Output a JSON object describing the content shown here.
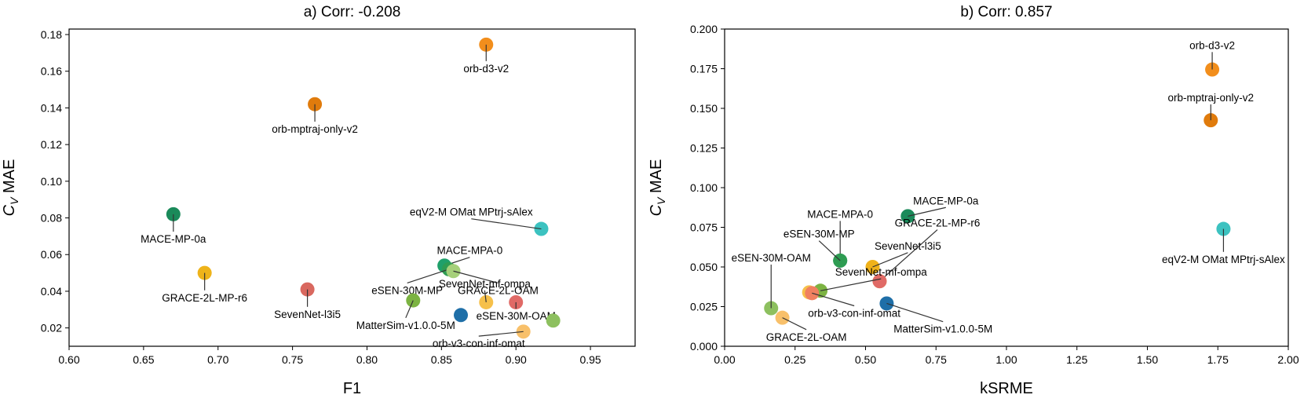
{
  "chart_data": [
    {
      "type": "scatter",
      "title": "a) Corr: -0.208",
      "xlabel": "F1",
      "ylabel_main": "C",
      "ylabel_sub": "V",
      "ylabel_rest": " MAE",
      "xlim": [
        0.6,
        0.98
      ],
      "ylim": [
        0.01,
        0.183
      ],
      "xticks": [
        0.6,
        0.65,
        0.7,
        0.75,
        0.8,
        0.85,
        0.9,
        0.95
      ],
      "xtick_labels": [
        "0.60",
        "0.65",
        "0.70",
        "0.75",
        "0.80",
        "0.85",
        "0.90",
        "0.95"
      ],
      "yticks": [
        0.02,
        0.04,
        0.06,
        0.08,
        0.1,
        0.12,
        0.14,
        0.16,
        0.18
      ],
      "ytick_labels": [
        "0.02",
        "0.04",
        "0.06",
        "0.08",
        "0.10",
        "0.12",
        "0.14",
        "0.16",
        "0.18"
      ],
      "points": [
        {
          "label": "orb-d3-v2",
          "x": 0.88,
          "y": 0.1745,
          "color": "#f28e1c",
          "lx": 0.88,
          "ly": 0.1655
        },
        {
          "label": "orb-mptraj-only-v2",
          "x": 0.765,
          "y": 0.142,
          "color": "#e07b0c",
          "lx": 0.765,
          "ly": 0.1325
        },
        {
          "label": "MACE-MP-0a",
          "x": 0.67,
          "y": 0.082,
          "color": "#1a8a5a",
          "lx": 0.67,
          "ly": 0.0725
        },
        {
          "label": "eqV2-M OMat MPtrj-sAlex",
          "x": 0.917,
          "y": 0.074,
          "color": "#3cc2c0",
          "lx": 0.87,
          "ly": 0.0795
        },
        {
          "label": "GRACE-2L-MP-r6",
          "x": 0.691,
          "y": 0.05,
          "color": "#eeb31a",
          "lx": 0.691,
          "ly": 0.0405
        },
        {
          "label": "MACE-MPA-0",
          "x": 0.852,
          "y": 0.054,
          "color": "#1fa06a",
          "lx": 0.869,
          "ly": 0.0585
        },
        {
          "label": "eSEN-30M-MP",
          "x": 0.855,
          "y": 0.052,
          "color": "#2e9c52",
          "lx": 0.827,
          "ly": 0.0445
        },
        {
          "label": "GRACE-2L-OAM",
          "x": 0.858,
          "y": 0.051,
          "color": "#a6d07a",
          "lx": 0.888,
          "ly": 0.0445
        },
        {
          "label": "SevenNet-l3i5",
          "x": 0.76,
          "y": 0.041,
          "color": "#d9685f",
          "lx": 0.76,
          "ly": 0.0315
        },
        {
          "label": "SevenNet-mf-ompa",
          "x": 0.88,
          "y": 0.034,
          "color": "#f6c04a",
          "lx": 0.879,
          "ly": 0.0405
        },
        {
          "label": "MatterSim-v1.0.0-5M",
          "x": 0.831,
          "y": 0.035,
          "color": "#7cb342",
          "lx": 0.826,
          "ly": 0.0255
        },
        {
          "label": "eSEN-30M-OAM",
          "x": 0.9,
          "y": 0.034,
          "color": "#e06a66",
          "lx": 0.9,
          "ly": 0.0305
        },
        {
          "label": "",
          "x": 0.863,
          "y": 0.027,
          "color": "#1f6fa8",
          "lx": 0.863,
          "ly": 0.027
        },
        {
          "label": "",
          "x": 0.925,
          "y": 0.024,
          "color": "#8dc05f",
          "lx": 0.925,
          "ly": 0.024
        },
        {
          "label": "orb-v3-con-inf-omat",
          "x": 0.905,
          "y": 0.018,
          "color": "#f8c06a",
          "lx": 0.875,
          "ly": 0.0155
        }
      ]
    },
    {
      "type": "scatter",
      "title": "b) Corr: 0.857",
      "xlabel": "kSRME",
      "ylabel_main": "C",
      "ylabel_sub": "V",
      "ylabel_rest": " MAE",
      "xlim": [
        0.0,
        2.0
      ],
      "ylim": [
        0.0,
        0.2
      ],
      "xticks": [
        0.0,
        0.25,
        0.5,
        0.75,
        1.0,
        1.25,
        1.5,
        1.75,
        2.0
      ],
      "xtick_labels": [
        "0.00",
        "0.25",
        "0.50",
        "0.75",
        "1.00",
        "1.25",
        "1.50",
        "1.75",
        "2.00"
      ],
      "yticks": [
        0.0,
        0.025,
        0.05,
        0.075,
        0.1,
        0.125,
        0.15,
        0.175,
        0.2
      ],
      "ytick_labels": [
        "0.000",
        "0.025",
        "0.050",
        "0.075",
        "0.100",
        "0.125",
        "0.150",
        "0.175",
        "0.200"
      ],
      "points": [
        {
          "label": "orb-d3-v2",
          "x": 1.73,
          "y": 0.1745,
          "color": "#f28e1c",
          "lx": 1.73,
          "ly": 0.1855
        },
        {
          "label": "orb-mptraj-only-v2",
          "x": 1.725,
          "y": 0.1425,
          "color": "#e07b0c",
          "lx": 1.725,
          "ly": 0.1525
        },
        {
          "label": "eqV2-M OMat MPtrj-sAlex",
          "x": 1.77,
          "y": 0.074,
          "color": "#3cc2c0",
          "lx": 1.77,
          "ly": 0.0595
        },
        {
          "label": "MACE-MP-0a",
          "x": 0.65,
          "y": 0.082,
          "color": "#1a8a5a",
          "lx": 0.785,
          "ly": 0.0875
        },
        {
          "label": "GRACE-2L-MP-r6",
          "x": 0.55,
          "y": 0.041,
          "color": "#eeb31a",
          "lx": 0.755,
          "ly": 0.0735
        },
        {
          "label": "MACE-MPA-0",
          "x": 0.41,
          "y": 0.054,
          "color": "#1fa06a",
          "lx": 0.41,
          "ly": 0.079
        },
        {
          "label": "eSEN-30M-MP",
          "x": 0.41,
          "y": 0.054,
          "color": "#2e9c52",
          "lx": 0.335,
          "ly": 0.0665
        },
        {
          "label": "SevenNet-l3i5",
          "x": 0.525,
          "y": 0.05,
          "color": "#f0b21a",
          "lx": 0.65,
          "ly": 0.059
        },
        {
          "label": "",
          "x": 0.55,
          "y": 0.041,
          "color": "#e06a66",
          "lx": 0.55,
          "ly": 0.041
        },
        {
          "label": "SevenNet-mf-ompa",
          "x": 0.34,
          "y": 0.035,
          "color": "#7cb342",
          "lx": 0.555,
          "ly": 0.0425
        },
        {
          "label": "eSEN-30M-OAM",
          "x": 0.165,
          "y": 0.024,
          "color": "#8dc05f",
          "lx": 0.165,
          "ly": 0.0515
        },
        {
          "label": "",
          "x": 0.3,
          "y": 0.034,
          "color": "#f6c04a",
          "lx": 0.3,
          "ly": 0.034
        },
        {
          "label": "MatterSim-v1.0.0-5M",
          "x": 0.575,
          "y": 0.027,
          "color": "#1f6fa8",
          "lx": 0.775,
          "ly": 0.0155
        },
        {
          "label": "orb-v3-con-inf-omat",
          "x": 0.31,
          "y": 0.0335,
          "color": "#f08060",
          "lx": 0.46,
          "ly": 0.0255
        },
        {
          "label": "GRACE-2L-OAM",
          "x": 0.205,
          "y": 0.018,
          "color": "#f8c06a",
          "lx": 0.29,
          "ly": 0.0105
        }
      ]
    }
  ]
}
